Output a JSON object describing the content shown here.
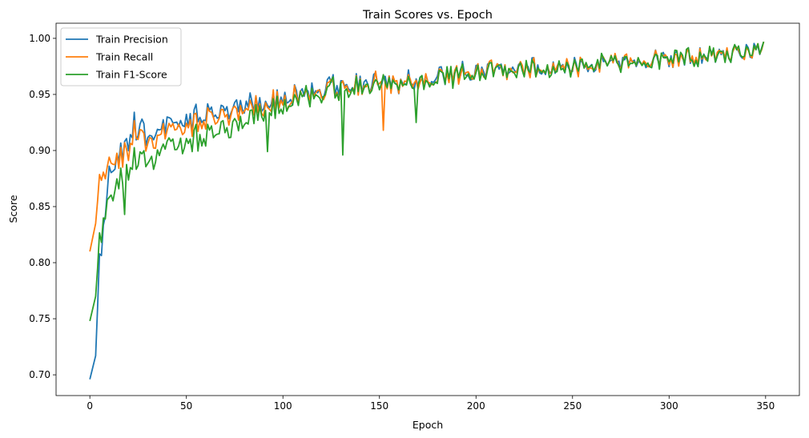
{
  "chart_data": {
    "type": "line",
    "title": "Train Scores vs. Epoch",
    "xlabel": "Epoch",
    "ylabel": "Score",
    "xlim": [
      -17.5,
      367.5
    ],
    "ylim": [
      0.6815,
      1.0135
    ],
    "xticks": [
      0,
      50,
      100,
      150,
      200,
      250,
      300,
      350
    ],
    "yticks": [
      0.7,
      0.75,
      0.8,
      0.85,
      0.9,
      0.95,
      1.0
    ],
    "ytick_labels": [
      "0.70",
      "0.75",
      "0.80",
      "0.85",
      "0.90",
      "0.95",
      "1.00"
    ],
    "grid": false,
    "legend_position": "top-left",
    "series": [
      {
        "name": "Train Precision",
        "color": "#1f77b4",
        "key_epochs": [
          0,
          3,
          5,
          8,
          10,
          12,
          15,
          20,
          22,
          25,
          30,
          40,
          50,
          60,
          70,
          80,
          90,
          100,
          110,
          120,
          130,
          150,
          170,
          200,
          250,
          300,
          320,
          340,
          349
        ],
        "key_values": [
          0.696,
          0.717,
          0.803,
          0.85,
          0.882,
          0.885,
          0.895,
          0.905,
          0.922,
          0.924,
          0.918,
          0.922,
          0.926,
          0.933,
          0.937,
          0.942,
          0.944,
          0.949,
          0.951,
          0.956,
          0.958,
          0.961,
          0.965,
          0.972,
          0.976,
          0.983,
          0.985,
          0.989,
          0.994
        ]
      },
      {
        "name": "Train Recall",
        "color": "#ff7f0e",
        "key_epochs": [
          0,
          3,
          5,
          8,
          10,
          12,
          15,
          20,
          22,
          25,
          30,
          40,
          50,
          60,
          70,
          80,
          90,
          100,
          110,
          120,
          130,
          150,
          170,
          200,
          250,
          300,
          320,
          340,
          349
        ],
        "key_values": [
          0.81,
          0.835,
          0.875,
          0.883,
          0.888,
          0.889,
          0.895,
          0.898,
          0.915,
          0.918,
          0.912,
          0.916,
          0.921,
          0.929,
          0.934,
          0.939,
          0.941,
          0.947,
          0.95,
          0.955,
          0.957,
          0.96,
          0.964,
          0.971,
          0.976,
          0.983,
          0.985,
          0.989,
          0.994
        ]
      },
      {
        "name": "Train F1-Score",
        "color": "#2ca02c",
        "key_epochs": [
          0,
          3,
          5,
          8,
          10,
          12,
          15,
          20,
          22,
          25,
          30,
          40,
          50,
          60,
          70,
          80,
          90,
          100,
          110,
          120,
          130,
          150,
          170,
          200,
          250,
          300,
          320,
          340,
          349
        ],
        "key_values": [
          0.748,
          0.77,
          0.82,
          0.85,
          0.857,
          0.862,
          0.875,
          0.88,
          0.891,
          0.897,
          0.893,
          0.902,
          0.906,
          0.915,
          0.92,
          0.928,
          0.935,
          0.944,
          0.948,
          0.953,
          0.956,
          0.959,
          0.963,
          0.971,
          0.976,
          0.983,
          0.985,
          0.989,
          0.994
        ]
      }
    ],
    "notable_dips": [
      {
        "series": "Train F1-Score",
        "epoch": 131,
        "value": 0.896
      },
      {
        "series": "Train F1-Score",
        "epoch": 92,
        "value": 0.899
      },
      {
        "series": "Train Recall",
        "epoch": 152,
        "value": 0.918
      },
      {
        "series": "Train F1-Score",
        "epoch": 169,
        "value": 0.925
      },
      {
        "series": "Train F1-Score",
        "epoch": 18,
        "value": 0.843
      }
    ]
  }
}
